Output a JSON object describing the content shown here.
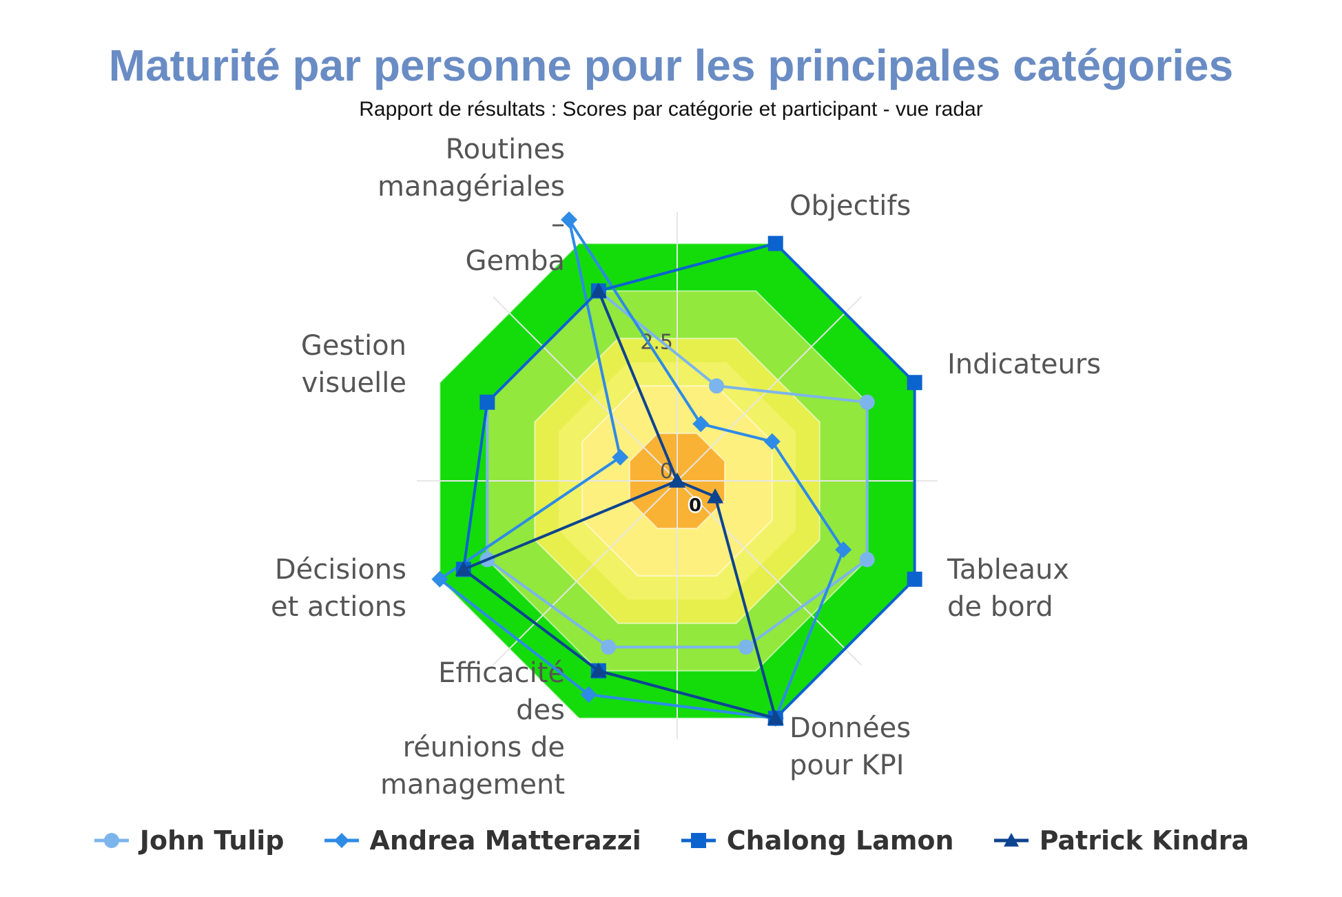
{
  "chart_data": {
    "type": "radar",
    "title": "Maturité par personne pour les principales catégories",
    "subtitle": "Rapport de résultats : Scores par catégorie et participant - vue radar",
    "categories": [
      [
        "Objectifs"
      ],
      [
        "Indicateurs"
      ],
      [
        "Tableaux",
        "de bord"
      ],
      [
        "Données",
        "pour KPI"
      ],
      [
        "Efficacité",
        "des",
        "réunions de",
        "management"
      ],
      [
        "Décisions",
        "et actions"
      ],
      [
        "Gestion",
        "visuelle"
      ],
      [
        "Routines",
        "managériales",
        "–",
        "Gemba"
      ]
    ],
    "radial_ticks": [
      "0",
      "2.5"
    ],
    "rmax": 5,
    "bands": [
      {
        "max": 1,
        "color": "#f9b233"
      },
      {
        "max": 2,
        "color": "#fdf07e"
      },
      {
        "max": 2.5,
        "color": "#f2f266"
      },
      {
        "max": 3,
        "color": "#e6ef4c"
      },
      {
        "max": 4,
        "color": "#92e83c"
      },
      {
        "max": 5,
        "color": "#14dc0a"
      }
    ],
    "series": [
      {
        "name": "John Tulip",
        "color": "#7cb5ec",
        "marker": "circle",
        "values": [
          2.0,
          4.0,
          4.0,
          3.5,
          3.5,
          4.0,
          4.0,
          4.0
        ]
      },
      {
        "name": "Andrea Matterazzi",
        "color": "#2e8be6",
        "marker": "diamond",
        "values": [
          1.2,
          2.0,
          3.5,
          5.0,
          4.5,
          5.0,
          1.2,
          5.5
        ]
      },
      {
        "name": "Chalong Lamon",
        "color": "#0b63ce",
        "marker": "square",
        "values": [
          5.0,
          5.0,
          5.0,
          5.0,
          4.0,
          4.5,
          4.0,
          4.0
        ]
      },
      {
        "name": "Patrick Kindra",
        "color": "#0d4490",
        "marker": "triangle",
        "values": [
          0,
          0,
          0.8,
          5.0,
          4.0,
          4.5,
          0,
          4.0
        ]
      }
    ],
    "data_labels": [
      {
        "series": "Patrick Kindra",
        "index": 0,
        "text": "0"
      }
    ]
  }
}
